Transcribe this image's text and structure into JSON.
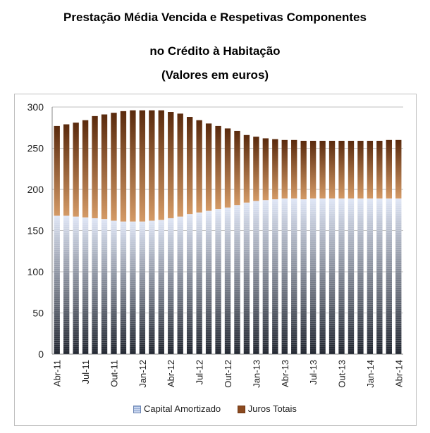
{
  "title": {
    "line1": "Prestação Média Vencida e Respetivas Componentes",
    "line2": "no Crédito à Habitação",
    "line3": "(Valores em euros)"
  },
  "colors": {
    "capital_top": "#dfe6f6",
    "capital_bottom": "#1e232d",
    "juros_top": "#5a2a0d",
    "juros_bottom": "#d49a66",
    "grid": "#bfbfbf"
  },
  "chart_data": {
    "type": "bar",
    "stacked": true,
    "categories": [
      "Abr-11",
      "Mai-11",
      "Jun-11",
      "Jul-11",
      "Ago-11",
      "Set-11",
      "Out-11",
      "Nov-11",
      "Dez-11",
      "Jan-12",
      "Fev-12",
      "Mar-12",
      "Abr-12",
      "Mai-12",
      "Jun-12",
      "Jul-12",
      "Ago-12",
      "Set-12",
      "Out-12",
      "Nov-12",
      "Dez-12",
      "Jan-13",
      "Fev-13",
      "Mar-13",
      "Abr-13",
      "Mai-13",
      "Jun-13",
      "Jul-13",
      "Ago-13",
      "Set-13",
      "Out-13",
      "Nov-13",
      "Dez-13",
      "Jan-14",
      "Fev-14",
      "Mar-14",
      "Abr-14"
    ],
    "x_tick_labels": [
      "Abr-11",
      "Jul-11",
      "Out-11",
      "Jan-12",
      "Abr-12",
      "Jul-12",
      "Out-12",
      "Jan-13",
      "Abr-13",
      "Jul-13",
      "Out-13",
      "Jan-14",
      "Abr-14"
    ],
    "series": [
      {
        "name": "Capital Amortizado",
        "values": [
          168,
          168,
          167,
          166,
          165,
          164,
          162,
          161,
          161,
          161,
          162,
          163,
          165,
          167,
          170,
          172,
          174,
          176,
          178,
          181,
          184,
          186,
          187,
          188,
          189,
          189,
          188,
          189,
          189,
          189,
          189,
          189,
          189,
          189,
          189,
          189,
          189
        ]
      },
      {
        "name": "Juros Totais",
        "values": [
          109,
          111,
          114,
          118,
          124,
          127,
          131,
          134,
          135,
          135,
          134,
          133,
          129,
          125,
          118,
          112,
          106,
          101,
          96,
          90,
          82,
          78,
          75,
          73,
          71,
          71,
          71,
          70,
          70,
          70,
          70,
          70,
          70,
          70,
          70,
          71,
          71
        ]
      }
    ],
    "ylim": [
      0,
      300
    ],
    "y_ticks": [
      0,
      50,
      100,
      150,
      200,
      250,
      300
    ],
    "grid": true,
    "legend_position": "bottom"
  }
}
